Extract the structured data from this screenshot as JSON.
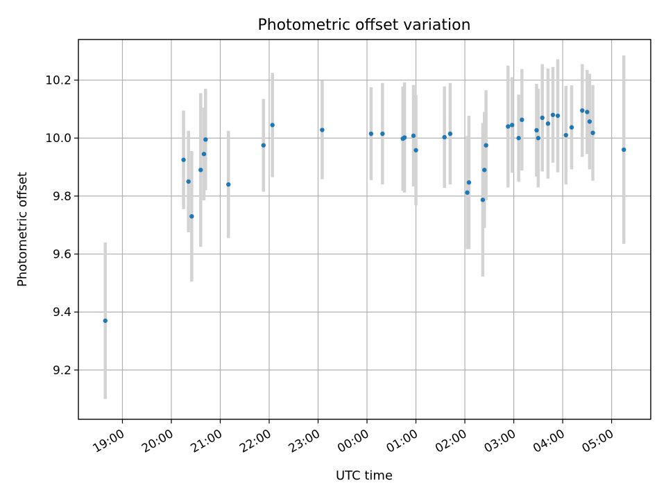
{
  "chart_data": {
    "type": "scatter",
    "title": "Photometric offset variation",
    "xlabel": "UTC time",
    "ylabel": "Photometric offset",
    "x_ticks": [
      "19:00",
      "20:00",
      "21:00",
      "22:00",
      "23:00",
      "00:00",
      "01:00",
      "02:00",
      "03:00",
      "04:00",
      "05:00"
    ],
    "y_ticks": [
      "9.2",
      "9.4",
      "9.6",
      "9.8",
      "10.0",
      "10.2"
    ],
    "xlim": [
      "18:06",
      "05:48"
    ],
    "ylim": [
      9.03,
      10.34
    ],
    "grid": true,
    "colors": {
      "points": "#1f77b4",
      "errorbars": "#d3d3d3"
    },
    "x": [
      "18:39",
      "20:15",
      "20:21",
      "20:25",
      "20:36",
      "20:40",
      "20:42",
      "21:10",
      "21:53",
      "22:04",
      "23:05",
      "00:05",
      "00:19",
      "00:44",
      "00:46",
      "00:57",
      "01:00",
      "01:35",
      "01:42",
      "02:03",
      "02:05",
      "02:22",
      "02:24",
      "02:26",
      "02:53",
      "02:58",
      "03:06",
      "03:10",
      "03:28",
      "03:30",
      "03:35",
      "03:42",
      "03:48",
      "03:54",
      "04:04",
      "04:11",
      "04:24",
      "04:30",
      "04:33",
      "04:37",
      "05:15"
    ],
    "y": [
      9.37,
      9.925,
      9.85,
      9.73,
      9.89,
      9.945,
      9.995,
      9.84,
      9.975,
      10.045,
      10.028,
      10.015,
      10.015,
      9.998,
      10.002,
      10.008,
      9.958,
      10.003,
      10.015,
      9.812,
      9.847,
      9.787,
      9.89,
      9.975,
      10.04,
      10.045,
      10.0,
      10.063,
      10.027,
      10.0,
      10.07,
      10.05,
      10.08,
      10.077,
      10.01,
      10.037,
      10.095,
      10.09,
      10.057,
      10.018,
      9.96
    ],
    "yerr": [
      0.27,
      0.17,
      0.175,
      0.225,
      0.265,
      0.16,
      0.175,
      0.185,
      0.16,
      0.18,
      0.17,
      0.16,
      0.175,
      0.18,
      0.19,
      0.175,
      0.19,
      0.175,
      0.175,
      0.195,
      0.23,
      0.265,
      0.2,
      0.19,
      0.21,
      0.165,
      0.15,
      0.175,
      0.16,
      0.17,
      0.185,
      0.19,
      0.165,
      0.195,
      0.17,
      0.145,
      0.16,
      0.145,
      0.165,
      0.165,
      0.325
    ]
  }
}
